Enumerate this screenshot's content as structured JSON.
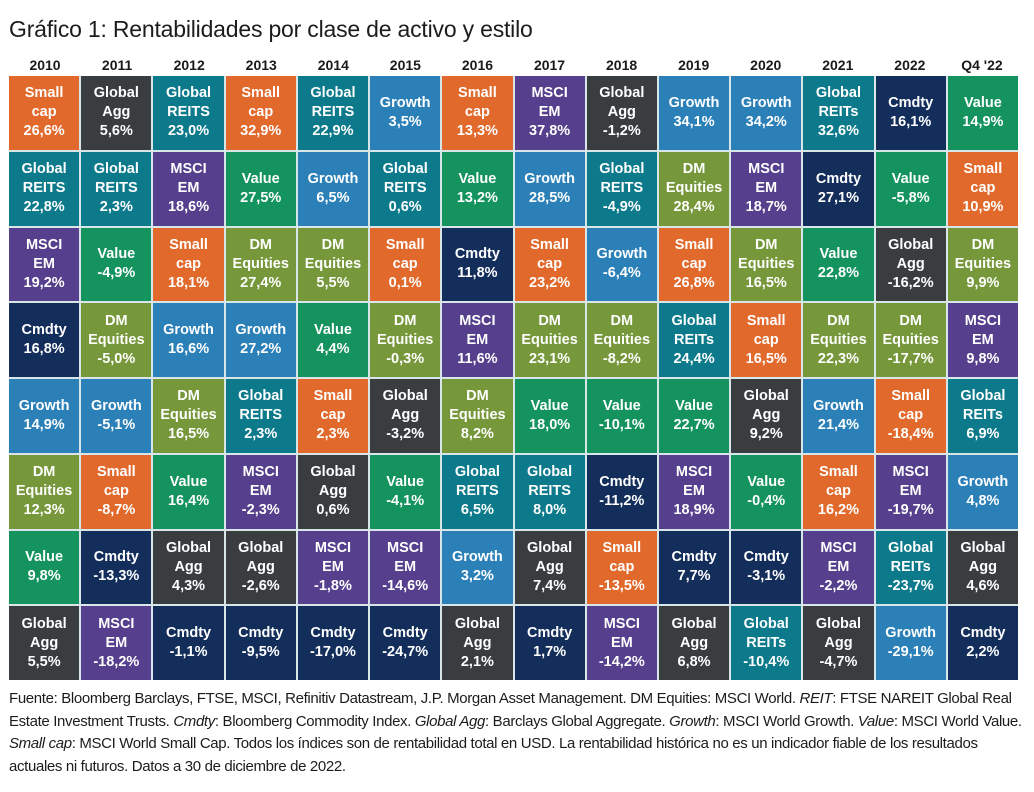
{
  "title": "Gráfico 1: Rentabilidades por clase de activo y estilo",
  "chart_data": {
    "type": "table",
    "title": "Gráfico 1: Rentabilidades por clase de activo y estilo",
    "description": "Quilt chart: annual returns by asset class, ranked highest (top) to lowest (bottom) per period",
    "columns": [
      "2010",
      "2011",
      "2012",
      "2013",
      "2014",
      "2015",
      "2016",
      "2017",
      "2018",
      "2019",
      "2020",
      "2021",
      "2022",
      "Q4 '22"
    ],
    "asset_colors": {
      "Small cap": "#e0692b",
      "Global Agg": "#3a3d40",
      "Global REITS": "#0d7a8c",
      "Global REITs": "#0d7a8c",
      "MSCI EM": "#563f8c",
      "Value": "#14935f",
      "Growth": "#2c80b8",
      "DM Equities": "#76973a",
      "Cmdty": "#142e5c"
    },
    "ranks": [
      [
        {
          "asset": "Small cap",
          "label": "Small\ncap",
          "value": "26,6%"
        },
        {
          "asset": "Global Agg",
          "label": "Global\nAgg",
          "value": "5,6%"
        },
        {
          "asset": "Global REITS",
          "label": "Global\nREITS",
          "value": "23,0%"
        },
        {
          "asset": "Small cap",
          "label": "Small\ncap",
          "value": "32,9%"
        },
        {
          "asset": "Global REITS",
          "label": "Global\nREITS",
          "value": "22,9%"
        },
        {
          "asset": "Growth",
          "label": "Growth",
          "value": "3,5%"
        },
        {
          "asset": "Small cap",
          "label": "Small\ncap",
          "value": "13,3%"
        },
        {
          "asset": "MSCI EM",
          "label": "MSCI\nEM",
          "value": "37,8%"
        },
        {
          "asset": "Global Agg",
          "label": "Global\nAgg",
          "value": "-1,2%"
        },
        {
          "asset": "Growth",
          "label": "Growth",
          "value": "34,1%"
        },
        {
          "asset": "Growth",
          "label": "Growth",
          "value": "34,2%"
        },
        {
          "asset": "Global REITs",
          "label": "Global\nREITs",
          "value": "32,6%"
        },
        {
          "asset": "Cmdty",
          "label": "Cmdty",
          "value": "16,1%"
        },
        {
          "asset": "Value",
          "label": "Value",
          "value": "14,9%"
        }
      ],
      [
        {
          "asset": "Global REITS",
          "label": "Global\nREITS",
          "value": "22,8%"
        },
        {
          "asset": "Global REITS",
          "label": "Global\nREITS",
          "value": "2,3%"
        },
        {
          "asset": "MSCI EM",
          "label": "MSCI\nEM",
          "value": "18,6%"
        },
        {
          "asset": "Value",
          "label": "Value",
          "value": "27,5%"
        },
        {
          "asset": "Growth",
          "label": "Growth",
          "value": "6,5%"
        },
        {
          "asset": "Global REITS",
          "label": "Global\nREITS",
          "value": "0,6%"
        },
        {
          "asset": "Value",
          "label": "Value",
          "value": "13,2%"
        },
        {
          "asset": "Growth",
          "label": "Growth",
          "value": "28,5%"
        },
        {
          "asset": "Global REITS",
          "label": "Global\nREITS",
          "value": "-4,9%"
        },
        {
          "asset": "DM Equities",
          "label": "DM\nEquities",
          "value": "28,4%"
        },
        {
          "asset": "MSCI EM",
          "label": "MSCI\nEM",
          "value": "18,7%"
        },
        {
          "asset": "Cmdty",
          "label": "Cmdty",
          "value": "27,1%"
        },
        {
          "asset": "Value",
          "label": "Value",
          "value": "-5,8%"
        },
        {
          "asset": "Small cap",
          "label": "Small\ncap",
          "value": "10,9%"
        }
      ],
      [
        {
          "asset": "MSCI EM",
          "label": "MSCI\nEM",
          "value": "19,2%"
        },
        {
          "asset": "Value",
          "label": "Value",
          "value": "-4,9%"
        },
        {
          "asset": "Small cap",
          "label": "Small\ncap",
          "value": "18,1%"
        },
        {
          "asset": "DM Equities",
          "label": "DM\nEquities",
          "value": "27,4%"
        },
        {
          "asset": "DM Equities",
          "label": "DM\nEquities",
          "value": "5,5%"
        },
        {
          "asset": "Small cap",
          "label": "Small\ncap",
          "value": "0,1%"
        },
        {
          "asset": "Cmdty",
          "label": "Cmdty",
          "value": "11,8%"
        },
        {
          "asset": "Small cap",
          "label": "Small\ncap",
          "value": "23,2%"
        },
        {
          "asset": "Growth",
          "label": "Growth",
          "value": "-6,4%"
        },
        {
          "asset": "Small cap",
          "label": "Small\ncap",
          "value": "26,8%"
        },
        {
          "asset": "DM Equities",
          "label": "DM\nEquities",
          "value": "16,5%"
        },
        {
          "asset": "Value",
          "label": "Value",
          "value": "22,8%"
        },
        {
          "asset": "Global Agg",
          "label": "Global\nAgg",
          "value": "-16,2%"
        },
        {
          "asset": "DM Equities",
          "label": "DM\nEquities",
          "value": "9,9%"
        }
      ],
      [
        {
          "asset": "Cmdty",
          "label": "Cmdty",
          "value": "16,8%"
        },
        {
          "asset": "DM Equities",
          "label": "DM\nEquities",
          "value": "-5,0%"
        },
        {
          "asset": "Growth",
          "label": "Growth",
          "value": "16,6%"
        },
        {
          "asset": "Growth",
          "label": "Growth",
          "value": "27,2%"
        },
        {
          "asset": "Value",
          "label": "Value",
          "value": "4,4%"
        },
        {
          "asset": "DM Equities",
          "label": "DM\nEquities",
          "value": "-0,3%"
        },
        {
          "asset": "MSCI EM",
          "label": "MSCI\nEM",
          "value": "11,6%"
        },
        {
          "asset": "DM Equities",
          "label": "DM\nEquities",
          "value": "23,1%"
        },
        {
          "asset": "DM Equities",
          "label": "DM\nEquities",
          "value": "-8,2%"
        },
        {
          "asset": "Global REITs",
          "label": "Global\nREITs",
          "value": "24,4%"
        },
        {
          "asset": "Small cap",
          "label": "Small\ncap",
          "value": "16,5%"
        },
        {
          "asset": "DM Equities",
          "label": "DM\nEquities",
          "value": "22,3%"
        },
        {
          "asset": "DM Equities",
          "label": "DM\nEquities",
          "value": "-17,7%"
        },
        {
          "asset": "MSCI EM",
          "label": "MSCI\nEM",
          "value": "9,8%"
        }
      ],
      [
        {
          "asset": "Growth",
          "label": "Growth",
          "value": "14,9%"
        },
        {
          "asset": "Growth",
          "label": "Growth",
          "value": "-5,1%"
        },
        {
          "asset": "DM Equities",
          "label": "DM\nEquities",
          "value": "16,5%"
        },
        {
          "asset": "Global REITS",
          "label": "Global\nREITS",
          "value": "2,3%"
        },
        {
          "asset": "Small cap",
          "label": "Small\ncap",
          "value": "2,3%"
        },
        {
          "asset": "Global Agg",
          "label": "Global\nAgg",
          "value": "-3,2%"
        },
        {
          "asset": "DM Equities",
          "label": "DM\nEquities",
          "value": "8,2%"
        },
        {
          "asset": "Value",
          "label": "Value",
          "value": "18,0%"
        },
        {
          "asset": "Value",
          "label": "Value",
          "value": "-10,1%"
        },
        {
          "asset": "Value",
          "label": "Value",
          "value": "22,7%"
        },
        {
          "asset": "Global Agg",
          "label": "Global\nAgg",
          "value": "9,2%"
        },
        {
          "asset": "Growth",
          "label": "Growth",
          "value": "21,4%"
        },
        {
          "asset": "Small cap",
          "label": "Small\ncap",
          "value": "-18,4%"
        },
        {
          "asset": "Global REITs",
          "label": "Global\nREITs",
          "value": "6,9%"
        }
      ],
      [
        {
          "asset": "DM Equities",
          "label": "DM\nEquities",
          "value": "12,3%"
        },
        {
          "asset": "Small cap",
          "label": "Small\ncap",
          "value": "-8,7%"
        },
        {
          "asset": "Value",
          "label": "Value",
          "value": "16,4%"
        },
        {
          "asset": "MSCI EM",
          "label": "MSCI\nEM",
          "value": "-2,3%"
        },
        {
          "asset": "Global Agg",
          "label": "Global\nAgg",
          "value": "0,6%"
        },
        {
          "asset": "Value",
          "label": "Value",
          "value": "-4,1%"
        },
        {
          "asset": "Global REITS",
          "label": "Global\nREITS",
          "value": "6,5%"
        },
        {
          "asset": "Global REITS",
          "label": "Global\nREITS",
          "value": "8,0%"
        },
        {
          "asset": "Cmdty",
          "label": "Cmdty",
          "value": "-11,2%"
        },
        {
          "asset": "MSCI EM",
          "label": "MSCI\nEM",
          "value": "18,9%"
        },
        {
          "asset": "Value",
          "label": "Value",
          "value": "-0,4%"
        },
        {
          "asset": "Small cap",
          "label": "Small\ncap",
          "value": "16,2%"
        },
        {
          "asset": "MSCI EM",
          "label": "MSCI\nEM",
          "value": "-19,7%"
        },
        {
          "asset": "Growth",
          "label": "Growth",
          "value": "4,8%"
        }
      ],
      [
        {
          "asset": "Value",
          "label": "Value",
          "value": "9,8%"
        },
        {
          "asset": "Cmdty",
          "label": "Cmdty",
          "value": "-13,3%"
        },
        {
          "asset": "Global Agg",
          "label": "Global\nAgg",
          "value": "4,3%"
        },
        {
          "asset": "Global Agg",
          "label": "Global\nAgg",
          "value": "-2,6%"
        },
        {
          "asset": "MSCI EM",
          "label": "MSCI\nEM",
          "value": "-1,8%"
        },
        {
          "asset": "MSCI EM",
          "label": "MSCI\nEM",
          "value": "-14,6%"
        },
        {
          "asset": "Growth",
          "label": "Growth",
          "value": "3,2%"
        },
        {
          "asset": "Global Agg",
          "label": "Global\nAgg",
          "value": "7,4%"
        },
        {
          "asset": "Small cap",
          "label": "Small\ncap",
          "value": "-13,5%"
        },
        {
          "asset": "Cmdty",
          "label": "Cmdty",
          "value": "7,7%"
        },
        {
          "asset": "Cmdty",
          "label": "Cmdty",
          "value": "-3,1%"
        },
        {
          "asset": "MSCI EM",
          "label": "MSCI\nEM",
          "value": "-2,2%"
        },
        {
          "asset": "Global REITs",
          "label": "Global\nREITs",
          "value": "-23,7%"
        },
        {
          "asset": "Global Agg",
          "label": "Global\nAgg",
          "value": "4,6%"
        }
      ],
      [
        {
          "asset": "Global Agg",
          "label": "Global\nAgg",
          "value": "5,5%"
        },
        {
          "asset": "MSCI EM",
          "label": "MSCI\nEM",
          "value": "-18,2%"
        },
        {
          "asset": "Cmdty",
          "label": "Cmdty",
          "value": "-1,1%"
        },
        {
          "asset": "Cmdty",
          "label": "Cmdty",
          "value": "-9,5%"
        },
        {
          "asset": "Cmdty",
          "label": "Cmdty",
          "value": "-17,0%"
        },
        {
          "asset": "Cmdty",
          "label": "Cmdty",
          "value": "-24,7%"
        },
        {
          "asset": "Global Agg",
          "label": "Global\nAgg",
          "value": "2,1%"
        },
        {
          "asset": "Cmdty",
          "label": "Cmdty",
          "value": "1,7%"
        },
        {
          "asset": "MSCI EM",
          "label": "MSCI\nEM",
          "value": "-14,2%"
        },
        {
          "asset": "Global Agg",
          "label": "Global\nAgg",
          "value": "6,8%"
        },
        {
          "asset": "Global REITs",
          "label": "Global\nREITs",
          "value": "-10,4%"
        },
        {
          "asset": "Global Agg",
          "label": "Global\nAgg",
          "value": "-4,7%"
        },
        {
          "asset": "Growth",
          "label": "Growth",
          "value": "-29,1%"
        },
        {
          "asset": "Cmdty",
          "label": "Cmdty",
          "value": "2,2%"
        }
      ]
    ]
  },
  "footnote": [
    {
      "text": "Fuente: Bloomberg Barclays, FTSE, MSCI, Refinitiv Datastream, J.P. Morgan Asset Management. DM Equities: MSCI World. ",
      "italic": false
    },
    {
      "text": "REIT",
      "italic": true
    },
    {
      "text": ": FTSE NAREIT Global Real Estate Investment Trusts. ",
      "italic": false
    },
    {
      "text": "Cmdty",
      "italic": true
    },
    {
      "text": ": Bloomberg Commodity Index. ",
      "italic": false
    },
    {
      "text": "Global Agg",
      "italic": true
    },
    {
      "text": ": Barclays Global Aggregate. ",
      "italic": false
    },
    {
      "text": "Growth",
      "italic": true
    },
    {
      "text": ": MSCI World Growth. ",
      "italic": false
    },
    {
      "text": "Value",
      "italic": true
    },
    {
      "text": ": MSCI World Value. ",
      "italic": false
    },
    {
      "text": "Small cap",
      "italic": true
    },
    {
      "text": ": MSCI World Small Cap. Todos los índices son de rentabilidad total en USD. La rentabilidad histórica no es un indicador fiable de los resultados actuales ni futuros. Datos a 30 de diciembre de 2022.",
      "italic": false
    }
  ]
}
